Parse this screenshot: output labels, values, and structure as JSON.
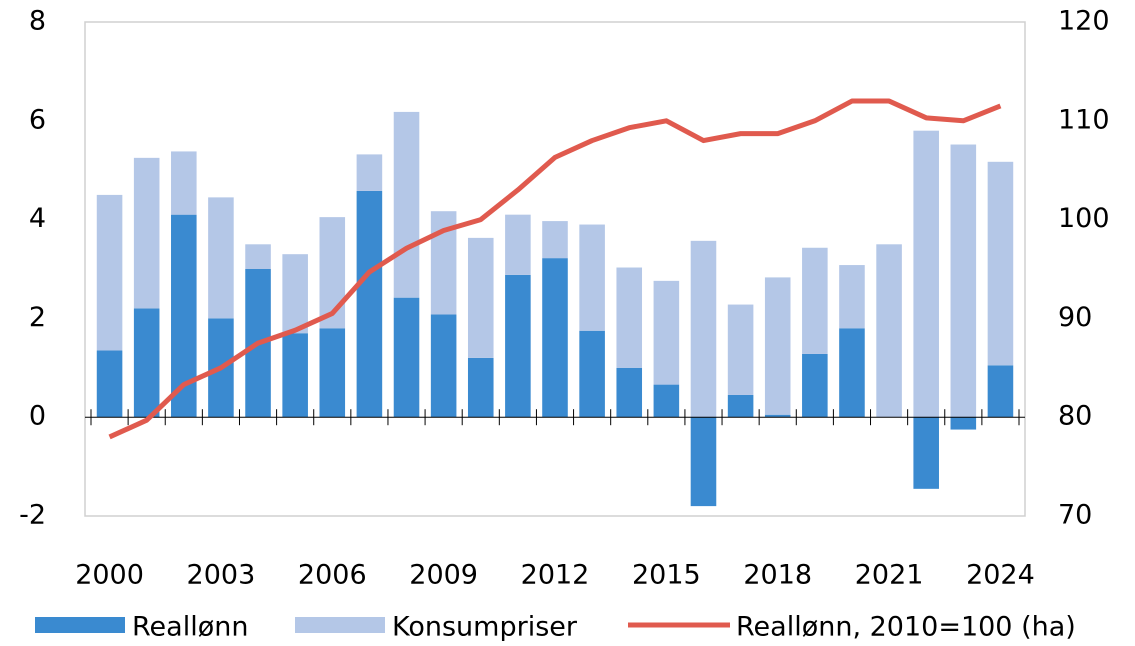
{
  "chart_data": {
    "type": "bar",
    "categories": [
      "2000",
      null,
      null,
      "2003",
      null,
      null,
      "2006",
      null,
      null,
      "2009",
      null,
      null,
      "2012",
      null,
      null,
      "2015",
      null,
      null,
      "2018",
      null,
      null,
      "2021",
      null,
      null,
      "2024"
    ],
    "series": [
      {
        "name": "Reallønn",
        "color": "#3a8ad0",
        "values": [
          1.35,
          2.2,
          4.1,
          2.0,
          3.0,
          1.7,
          1.8,
          4.58,
          2.42,
          2.08,
          1.2,
          2.88,
          3.22,
          1.75,
          1.0,
          0.66,
          -1.8,
          0.45,
          0.05,
          1.28,
          1.8,
          0,
          -1.45,
          -0.25,
          1.05
        ]
      },
      {
        "name": "Konsumpriser",
        "color": "#b4c7e7",
        "values": [
          3.15,
          3.05,
          1.28,
          2.45,
          0.5,
          1.6,
          2.25,
          0.74,
          3.76,
          2.09,
          2.43,
          1.22,
          0.75,
          2.15,
          2.03,
          2.1,
          3.57,
          1.83,
          2.78,
          2.15,
          1.28,
          3.5,
          5.8,
          5.52,
          4.12
        ]
      },
      {
        "name": "Reallønn, 2010=100 (ha)",
        "color": "#e05a4e",
        "type": "line",
        "axis": "y2",
        "values": [
          78,
          79.7,
          83.3,
          85,
          87.5,
          88.8,
          90.5,
          94.7,
          97.1,
          98.9,
          100,
          103,
          106.3,
          108,
          109.3,
          110,
          108,
          108.7,
          108.7,
          110,
          112,
          112,
          110.3,
          110,
          111.5
        ]
      }
    ],
    "ylim": [
      -2,
      8
    ],
    "yticks": [
      -2,
      0,
      2,
      4,
      6,
      8
    ],
    "y2lim": [
      70,
      120
    ],
    "y2ticks": [
      70,
      80,
      90,
      100,
      110,
      120
    ],
    "stacked": true,
    "legend": "bottom"
  }
}
